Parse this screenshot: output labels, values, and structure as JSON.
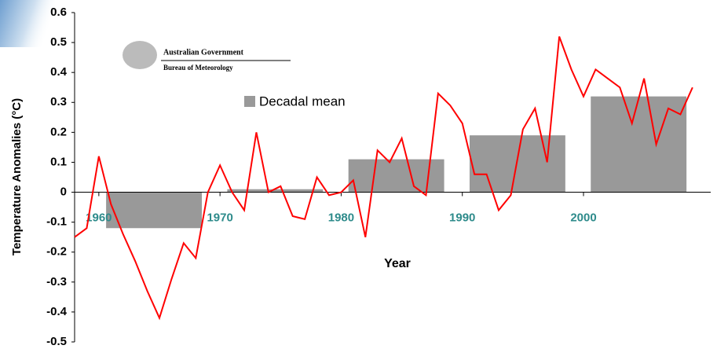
{
  "chart_data": {
    "type": "bar",
    "annotations": [
      "Australian Government",
      "Bureau of Meteorology"
    ],
    "xlabel": "Year",
    "ylabel": "Temperature Anomalies (°C)",
    "xlim": [
      1958,
      2010.5
    ],
    "xticks": [
      1960,
      1970,
      1980,
      1990,
      2000
    ],
    "ylim": [
      -0.5,
      0.6
    ],
    "yticks": [
      -0.5,
      -0.4,
      -0.3,
      -0.2,
      -0.1,
      0,
      0.1,
      0.2,
      0.3,
      0.4,
      0.5,
      0.6
    ],
    "legend": "upper-left",
    "series": [
      {
        "name": "Decadal mean",
        "type": "bar",
        "color": "#999999",
        "x": [
          1960,
          1970,
          1980,
          1990,
          2000
        ],
        "values": [
          -0.12,
          0.01,
          0.11,
          0.19,
          0.32
        ]
      },
      {
        "type": "line",
        "color": "#ff0000",
        "x": [
          1958,
          1959,
          1960,
          1961,
          1962,
          1963,
          1964,
          1965,
          1966,
          1967,
          1968,
          1969,
          1970,
          1971,
          1972,
          1973,
          1974,
          1975,
          1976,
          1977,
          1978,
          1979,
          1980,
          1981,
          1982,
          1983,
          1984,
          1985,
          1986,
          1987,
          1988,
          1989,
          1990,
          1991,
          1992,
          1993,
          1994,
          1995,
          1996,
          1997,
          1998,
          1999,
          2000,
          2001,
          2002,
          2003,
          2004,
          2005,
          2006,
          2007,
          2008,
          2009
        ],
        "values": [
          -0.15,
          -0.12,
          0.12,
          -0.04,
          -0.14,
          -0.23,
          -0.33,
          -0.42,
          -0.29,
          -0.17,
          -0.22,
          0.0,
          0.09,
          0.0,
          -0.06,
          0.2,
          0.0,
          0.02,
          -0.08,
          -0.09,
          0.05,
          -0.01,
          0.0,
          0.04,
          -0.15,
          0.14,
          0.1,
          0.18,
          0.02,
          -0.01,
          0.33,
          0.29,
          0.23,
          0.06,
          0.06,
          -0.06,
          -0.01,
          0.21,
          0.28,
          0.1,
          0.52,
          0.41,
          0.32,
          0.41,
          0.38,
          0.35,
          0.23,
          0.38,
          0.16,
          0.28,
          0.26,
          0.35
        ]
      }
    ]
  }
}
